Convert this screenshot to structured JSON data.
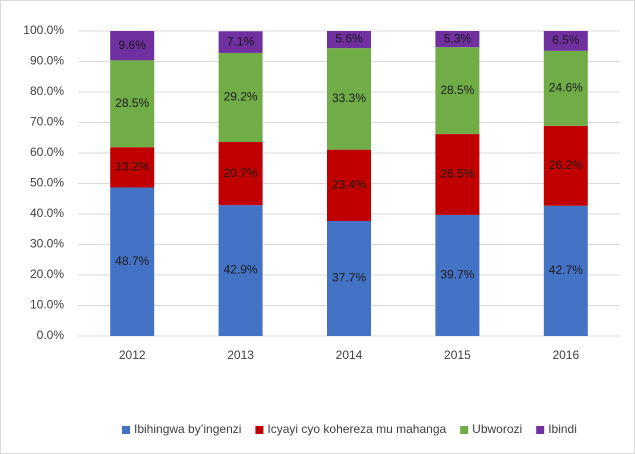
{
  "chart_data": {
    "type": "stacked_bar",
    "categories": [
      "2012",
      "2013",
      "2014",
      "2015",
      "2016"
    ],
    "series": [
      {
        "name": "Ibihingwa by’ingenzi",
        "color": "#4472c4",
        "values": [
          48.7,
          42.9,
          37.7,
          39.7,
          42.7
        ],
        "value_labels": [
          "48.7%",
          "42.9%",
          "37.7%",
          "39.7%",
          "42.7%"
        ]
      },
      {
        "name": "Icyayi cyo kohereza mu mahanga",
        "color": "#c00000",
        "values": [
          13.2,
          20.7,
          23.4,
          26.5,
          26.2
        ],
        "value_labels": [
          "13.2%",
          "20.7%",
          "23.4%",
          "26.5%",
          "26.2%"
        ]
      },
      {
        "name": "Ubworozi",
        "color": "#70ad47",
        "values": [
          28.5,
          29.2,
          33.3,
          28.5,
          24.6
        ],
        "value_labels": [
          "28.5%",
          "29.2%",
          "33.3%",
          "28.5%",
          "24.6%"
        ]
      },
      {
        "name": "Ibindi",
        "color": "#7030a0",
        "values": [
          9.6,
          7.1,
          5.6,
          5.3,
          6.5
        ],
        "value_labels": [
          "9.6%",
          "7.1%",
          "5.6%",
          "5.3%",
          "6.5%"
        ]
      }
    ],
    "ylim": [
      0,
      100
    ],
    "yticks": [
      {
        "value": 0,
        "label": "0.0%"
      },
      {
        "value": 10,
        "label": "10.0%"
      },
      {
        "value": 20,
        "label": "20.0%"
      },
      {
        "value": 30,
        "label": "30.0%"
      },
      {
        "value": 40,
        "label": "40.0%"
      },
      {
        "value": 50,
        "label": "50.0%"
      },
      {
        "value": 60,
        "label": "60.0%"
      },
      {
        "value": 70,
        "label": "70.0%"
      },
      {
        "value": 80,
        "label": "80.0%"
      },
      {
        "value": 90,
        "label": "90.0%"
      },
      {
        "value": 100,
        "label": "100.0%"
      }
    ],
    "grid": true,
    "legend": "bottom"
  }
}
